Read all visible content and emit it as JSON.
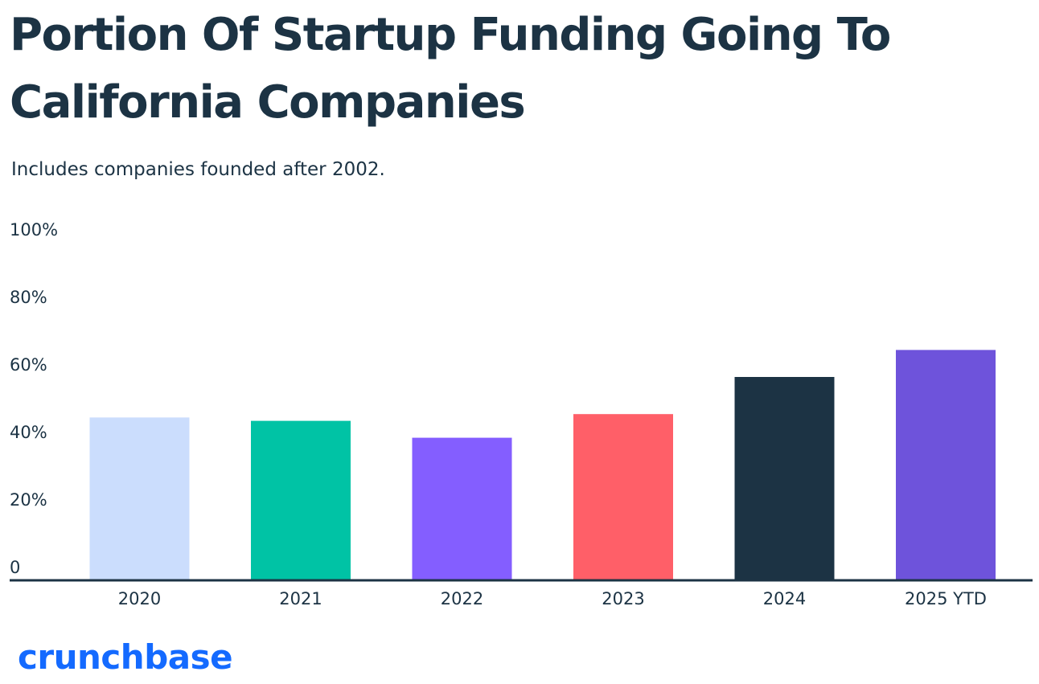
{
  "header": {
    "title": "Portion Of Startup Funding Going To California Companies",
    "subtitle": "Includes companies founded after 2002."
  },
  "branding": {
    "logo_text": "crunchbase",
    "logo_color": "#146AFF"
  },
  "chart_data": {
    "type": "bar",
    "title": "Portion Of Startup Funding Going To California Companies",
    "subtitle": "Includes companies founded after 2002.",
    "categories": [
      "2020",
      "2021",
      "2022",
      "2023",
      "2024",
      "2025 YTD"
    ],
    "values": [
      48,
      47,
      42,
      49,
      60,
      68
    ],
    "unit": "%",
    "ylim": [
      0,
      100
    ],
    "yticks": [
      0,
      20,
      40,
      60,
      80,
      100
    ],
    "ytick_labels": [
      "0",
      "20%",
      "40%",
      "60%",
      "80%",
      "100%"
    ],
    "grid": false,
    "legend": "none",
    "colors": [
      "#CBDDFD",
      "#00C3A5",
      "#845EFF",
      "#FF5F68",
      "#1C3344",
      "#6E53DB"
    ],
    "axis_color": "#1C3344"
  }
}
